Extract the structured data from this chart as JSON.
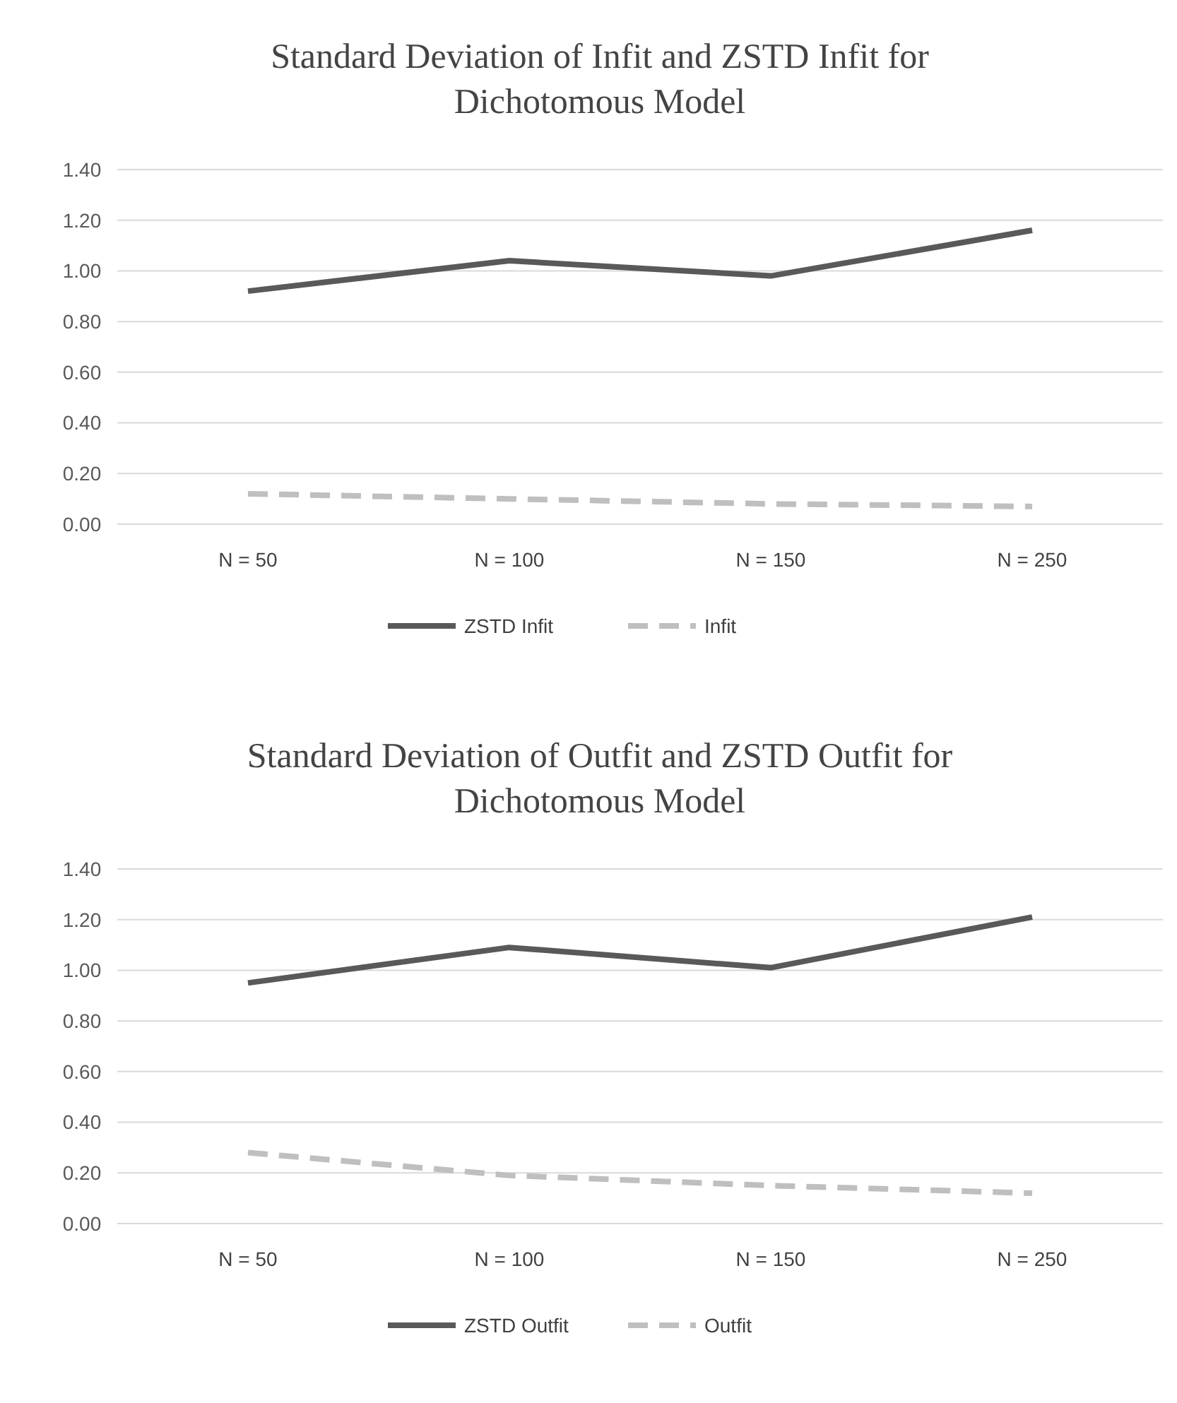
{
  "chart_data": [
    {
      "type": "line",
      "title": "Standard Deviation  of Infit and ZSTD Infit for Dichotomous Model",
      "categories": [
        "N = 50",
        "N = 100",
        "N = 150",
        "N = 250"
      ],
      "ylim": [
        0,
        1.4
      ],
      "yticks": [
        {
          "value": 0,
          "label": "0.00"
        },
        {
          "value": 0.2,
          "label": "0.20"
        },
        {
          "value": 0.4,
          "label": "0.40"
        },
        {
          "value": 0.6,
          "label": "0.60"
        },
        {
          "value": 0.8,
          "label": "0.80"
        },
        {
          "value": 1,
          "label": "1.00"
        },
        {
          "value": 1.2,
          "label": "1.20"
        },
        {
          "value": 1.4,
          "label": "1.40"
        }
      ],
      "grid": "y",
      "legend": "bottom",
      "series": [
        {
          "name": "ZSTD Infit",
          "color": "#595959",
          "line_style": "solid",
          "values": [
            0.92,
            1.04,
            0.98,
            1.16
          ]
        },
        {
          "name": "Infit",
          "color": "#bfbfbf",
          "line_style": "dashed",
          "values": [
            0.12,
            0.1,
            0.08,
            0.07
          ]
        }
      ]
    },
    {
      "type": "line",
      "title": "Standard Deviation  of Outfit and ZSTD Outfit for Dichotomous Model",
      "categories": [
        "N = 50",
        "N = 100",
        "N = 150",
        "N = 250"
      ],
      "ylim": [
        0,
        1.4
      ],
      "yticks": [
        {
          "value": 0,
          "label": "0.00"
        },
        {
          "value": 0.2,
          "label": "0.20"
        },
        {
          "value": 0.4,
          "label": "0.40"
        },
        {
          "value": 0.6,
          "label": "0.60"
        },
        {
          "value": 0.8,
          "label": "0.80"
        },
        {
          "value": 1,
          "label": "1.00"
        },
        {
          "value": 1.2,
          "label": "1.20"
        },
        {
          "value": 1.4,
          "label": "1.40"
        }
      ],
      "grid": "y",
      "legend": "bottom",
      "series": [
        {
          "name": "ZSTD Outfit",
          "color": "#595959",
          "line_style": "solid",
          "values": [
            0.95,
            1.09,
            1.01,
            1.21
          ]
        },
        {
          "name": "Outfit",
          "color": "#bfbfbf",
          "line_style": "dashed",
          "values": [
            0.28,
            0.19,
            0.15,
            0.12
          ]
        }
      ]
    }
  ]
}
